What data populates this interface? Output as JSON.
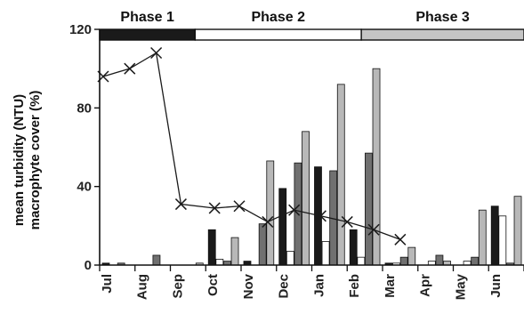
{
  "chart_data": {
    "type": "bar",
    "ylabel_lines": [
      "mean turbidity (NTU)",
      "macrophyte cover (%)"
    ],
    "ylim": [
      0,
      120
    ],
    "yticks": [
      0,
      40,
      80,
      120
    ],
    "grid": false,
    "categories": [
      "Jul",
      "Aug",
      "Sep",
      "Oct",
      "Nov",
      "Dec",
      "Jan",
      "Feb",
      "Mar",
      "Apr",
      "May",
      "Jun"
    ],
    "phases": [
      {
        "label": "Phase 1",
        "start": 0,
        "end": 2.7,
        "color": "#1a1a1a"
      },
      {
        "label": "Phase 2",
        "start": 2.7,
        "end": 7.4,
        "color": "#ffffff"
      },
      {
        "label": "Phase 3",
        "start": 7.4,
        "end": 12,
        "color": "#c4c4c4"
      }
    ],
    "series": [
      {
        "type": "bar",
        "color": "#1a1a1a",
        "values": [
          1,
          0,
          0,
          18,
          2,
          39,
          50,
          18,
          1,
          0,
          0,
          30
        ]
      },
      {
        "type": "bar",
        "color": "#ffffff",
        "values": [
          0,
          0,
          0,
          3,
          0,
          7,
          12,
          4,
          1,
          2,
          2,
          25
        ]
      },
      {
        "type": "bar",
        "color": "#707070",
        "values": [
          1,
          5,
          0,
          2,
          21,
          52,
          48,
          57,
          4,
          5,
          4,
          1
        ]
      },
      {
        "type": "bar",
        "color": "#b8b8b8",
        "values": [
          0,
          0,
          1,
          14,
          53,
          68,
          92,
          100,
          9,
          2,
          28,
          35
        ]
      },
      {
        "type": "line",
        "marker": "x",
        "color": "#1a1a1a",
        "x": [
          0.1,
          0.85,
          1.6,
          2.3,
          3.25,
          3.95,
          4.75,
          5.5,
          6.25,
          7.0,
          7.75,
          8.5
        ],
        "values": [
          96,
          100,
          108,
          31,
          29,
          30,
          22,
          28,
          25,
          22,
          18,
          13
        ]
      }
    ]
  }
}
